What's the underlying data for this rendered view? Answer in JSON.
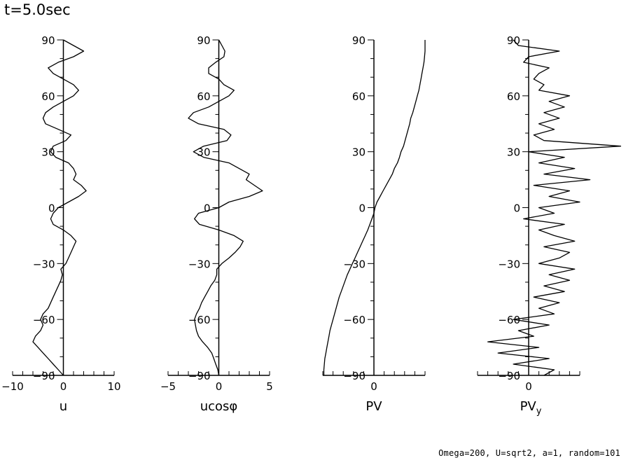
{
  "title": "t=5.0sec",
  "footer": "Omega=200, U=sqrt2, a=1, random=101",
  "chart_data": [
    {
      "type": "line",
      "xlabel": "u",
      "xticks": [
        "-10",
        "0",
        "10"
      ],
      "xlim": [
        -10,
        10
      ],
      "ylim": [
        -90,
        90
      ],
      "yticks": [
        "90",
        "60",
        "30",
        "0",
        "-30",
        "-60",
        "-90"
      ],
      "y": [
        -90,
        -87,
        -84,
        -81,
        -78,
        -75,
        -72,
        -69,
        -66,
        -63,
        -60,
        -57,
        -54,
        -51,
        -48,
        -45,
        -42,
        -39,
        -36,
        -33,
        -30,
        -27,
        -24,
        -21,
        -18,
        -15,
        -12,
        -9,
        -6,
        -3,
        0,
        3,
        6,
        9,
        12,
        15,
        18,
        21,
        24,
        27,
        30,
        33,
        36,
        39,
        42,
        45,
        48,
        51,
        54,
        57,
        60,
        63,
        66,
        69,
        72,
        75,
        78,
        81,
        84,
        87,
        90
      ],
      "x": [
        0,
        -1,
        -2,
        -3,
        -4,
        -5,
        -6,
        -5.5,
        -4.5,
        -4,
        -4.5,
        -4,
        -3,
        -2.5,
        -2,
        -1.5,
        -1,
        -0.5,
        -0.2,
        -0.5,
        0.5,
        1,
        1.5,
        2,
        2.5,
        1.5,
        0,
        -2,
        -2.5,
        -2,
        -1,
        1,
        3,
        4.5,
        3.5,
        2,
        2.5,
        2,
        1,
        -1.5,
        -2.5,
        -2,
        0.5,
        1.5,
        -1,
        -3.5,
        -4,
        -3.5,
        -2,
        0,
        2,
        3,
        2,
        0,
        -2,
        -3,
        -1,
        2,
        4,
        2,
        0
      ]
    },
    {
      "type": "line",
      "xlabel": "ucosφ",
      "xticks": [
        "-5",
        "0",
        "5"
      ],
      "xlim": [
        -5,
        5
      ],
      "ylim": [
        -90,
        90
      ],
      "yticks": [
        "90",
        "60",
        "30",
        "0",
        "-30",
        "-60",
        "-90"
      ],
      "y": [
        -90,
        -87,
        -84,
        -81,
        -78,
        -75,
        -72,
        -69,
        -66,
        -63,
        -60,
        -57,
        -54,
        -51,
        -48,
        -45,
        -42,
        -39,
        -36,
        -33,
        -30,
        -27,
        -24,
        -21,
        -18,
        -15,
        -12,
        -9,
        -6,
        -3,
        0,
        3,
        6,
        9,
        12,
        15,
        18,
        21,
        24,
        27,
        30,
        33,
        36,
        39,
        42,
        45,
        48,
        51,
        54,
        57,
        60,
        63,
        66,
        69,
        72,
        75,
        78,
        81,
        84,
        87,
        90
      ],
      "x": [
        0,
        -0.1,
        -0.3,
        -0.5,
        -0.7,
        -1.1,
        -1.6,
        -2.0,
        -2.2,
        -2.3,
        -2.4,
        -2.2,
        -1.9,
        -1.7,
        -1.4,
        -1.1,
        -0.8,
        -0.4,
        -0.2,
        -0.2,
        0.3,
        1.0,
        1.6,
        2.1,
        2.4,
        1.5,
        0,
        -1.9,
        -2.4,
        -2.0,
        0,
        1,
        3,
        4.3,
        3.5,
        2.7,
        3.0,
        2.0,
        1.0,
        -1.5,
        -2.5,
        -1.5,
        0.8,
        1.2,
        0.5,
        -2.0,
        -3.0,
        -2.5,
        -1.0,
        0,
        1.0,
        1.5,
        0.5,
        0,
        -1.0,
        -1.0,
        -0.3,
        0.5,
        0.6,
        0.3,
        0
      ]
    },
    {
      "type": "line",
      "xlabel": "PV",
      "xticks": [
        "0"
      ],
      "xlim": [
        -5,
        5
      ],
      "ylim": [
        -90,
        90
      ],
      "yticks": [
        "90",
        "60",
        "30",
        "0",
        "-30",
        "-60",
        "-90"
      ],
      "y": [
        -90,
        -87,
        -84,
        -81,
        -78,
        -75,
        -72,
        -69,
        -66,
        -63,
        -60,
        -57,
        -54,
        -51,
        -48,
        -45,
        -42,
        -39,
        -36,
        -33,
        -30,
        -27,
        -24,
        -21,
        -18,
        -15,
        -12,
        -9,
        -6,
        -3,
        0,
        3,
        6,
        9,
        12,
        15,
        18,
        21,
        24,
        27,
        30,
        33,
        36,
        39,
        42,
        45,
        48,
        51,
        54,
        57,
        60,
        63,
        66,
        69,
        72,
        75,
        78,
        81,
        84,
        87,
        90
      ],
      "x": [
        -4.9,
        -4.9,
        -4.85,
        -4.8,
        -4.7,
        -4.6,
        -4.5,
        -4.4,
        -4.3,
        -4.15,
        -4.0,
        -3.85,
        -3.7,
        -3.55,
        -3.4,
        -3.2,
        -3.0,
        -2.8,
        -2.6,
        -2.35,
        -2.1,
        -1.85,
        -1.6,
        -1.35,
        -1.1,
        -0.85,
        -0.6,
        -0.4,
        -0.2,
        0,
        0.1,
        0.3,
        0.6,
        0.9,
        1.2,
        1.5,
        1.8,
        2.0,
        2.3,
        2.5,
        2.65,
        2.9,
        3.05,
        3.2,
        3.35,
        3.5,
        3.6,
        3.8,
        3.95,
        4.1,
        4.25,
        4.4,
        4.5,
        4.6,
        4.7,
        4.8,
        4.9,
        4.95,
        5.0,
        5.0,
        5.0
      ]
    },
    {
      "type": "line",
      "xlabel": "PVy",
      "xlabel_main": "PV",
      "xlabel_sub": "y",
      "xticks": [
        "0"
      ],
      "xlim": [
        -10,
        10
      ],
      "ylim": [
        -90,
        90
      ],
      "yticks": [
        "90",
        "60",
        "30",
        "0",
        "-30",
        "-60",
        "-90"
      ],
      "y": [
        -90,
        -87,
        -84,
        -81,
        -78,
        -75,
        -72,
        -69,
        -66,
        -63,
        -60,
        -57,
        -54,
        -51,
        -48,
        -45,
        -42,
        -39,
        -36,
        -33,
        -30,
        -27,
        -24,
        -21,
        -18,
        -15,
        -12,
        -9,
        -6,
        -3,
        0,
        3,
        6,
        9,
        12,
        15,
        18,
        21,
        24,
        27,
        30,
        33,
        36,
        39,
        42,
        45,
        48,
        51,
        54,
        57,
        60,
        63,
        66,
        69,
        72,
        75,
        78,
        81,
        84,
        87,
        90
      ],
      "x": [
        3,
        5,
        -3,
        4,
        -6,
        2,
        -8,
        1,
        -2,
        4,
        -3,
        5,
        2,
        6,
        1,
        7,
        3,
        8,
        4,
        9,
        2,
        6,
        8,
        3,
        9,
        5,
        2,
        7,
        -1,
        5,
        2,
        10,
        4,
        8,
        1,
        12,
        3,
        9,
        2,
        7,
        0,
        18,
        3,
        1,
        5,
        2,
        6,
        3,
        7,
        4,
        8,
        2,
        3,
        1,
        2,
        4,
        -1,
        0,
        6,
        -2,
        -3
      ]
    }
  ]
}
